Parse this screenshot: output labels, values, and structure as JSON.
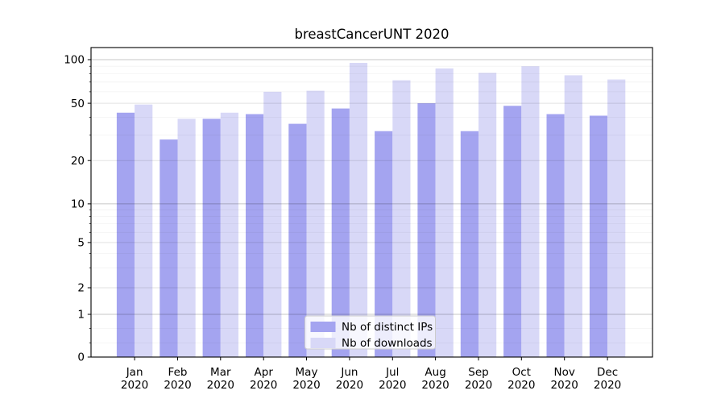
{
  "chart_data": {
    "type": "bar",
    "title": "breastCancerUNT 2020",
    "categories": [
      "Jan",
      "Feb",
      "Mar",
      "Apr",
      "May",
      "Jun",
      "Jul",
      "Aug",
      "Sep",
      "Oct",
      "Nov",
      "Dec"
    ],
    "x_year_label": "2020",
    "series": [
      {
        "name": "Nb of distinct IPs",
        "color": "#a4a4f0",
        "values": [
          43,
          28,
          39,
          42,
          36,
          46,
          32,
          50,
          32,
          48,
          42,
          41
        ]
      },
      {
        "name": "Nb of downloads",
        "color": "#d8d8f7",
        "values": [
          49,
          39,
          43,
          60,
          61,
          95,
          72,
          87,
          81,
          90,
          78,
          73
        ]
      }
    ],
    "xlabel": "",
    "ylabel": "",
    "ylim": [
      0,
      120
    ],
    "y_ticks": [
      0,
      1,
      2,
      5,
      10,
      20,
      50,
      100
    ],
    "y_minor_ticks": [
      0.33,
      0.67,
      3,
      4,
      6,
      7,
      8,
      9,
      30,
      40,
      60,
      70,
      80,
      90
    ],
    "grid": "on",
    "legend_position": "lower center",
    "y_scale": {
      "type": "symlog-like",
      "anchors": [
        [
          0,
          0
        ],
        [
          1,
          0.138
        ],
        [
          2,
          0.224
        ],
        [
          5,
          0.37
        ],
        [
          10,
          0.495
        ],
        [
          20,
          0.635
        ],
        [
          50,
          0.82
        ],
        [
          100,
          0.961
        ]
      ]
    },
    "colors": {
      "spine": "#000000",
      "grid_major": "rgba(0,0,0,0.22)",
      "grid_labeled": "rgba(0,0,0,0.115)",
      "grid_minor": "rgba(0,0,0,0.05)",
      "legend_border": "#cccccc",
      "legend_bg": "rgba(255,255,255,0.8)"
    }
  }
}
